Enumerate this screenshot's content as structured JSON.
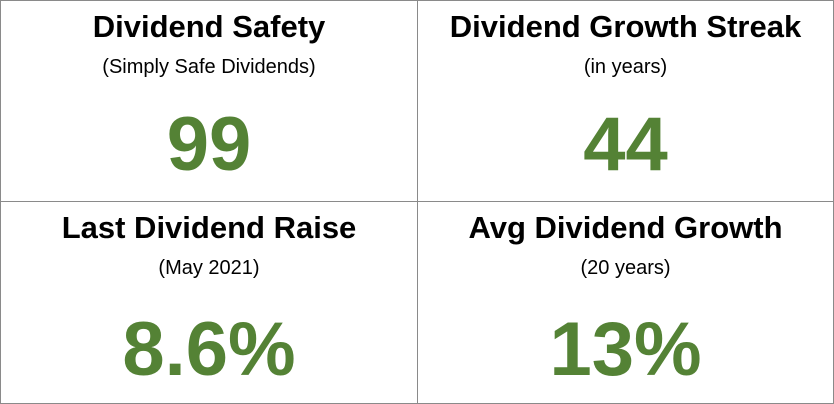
{
  "accent_color": "#548235",
  "cells": [
    {
      "title": "Dividend Safety",
      "subtitle": "(Simply Safe Dividends)",
      "value": "99"
    },
    {
      "title": "Dividend Growth Streak",
      "subtitle": "(in years)",
      "value": "44"
    },
    {
      "title": "Last Dividend Raise",
      "subtitle": "(May 2021)",
      "value": "8.6%"
    },
    {
      "title": "Avg Dividend Growth",
      "subtitle": "(20 years)",
      "value": "13%"
    }
  ]
}
